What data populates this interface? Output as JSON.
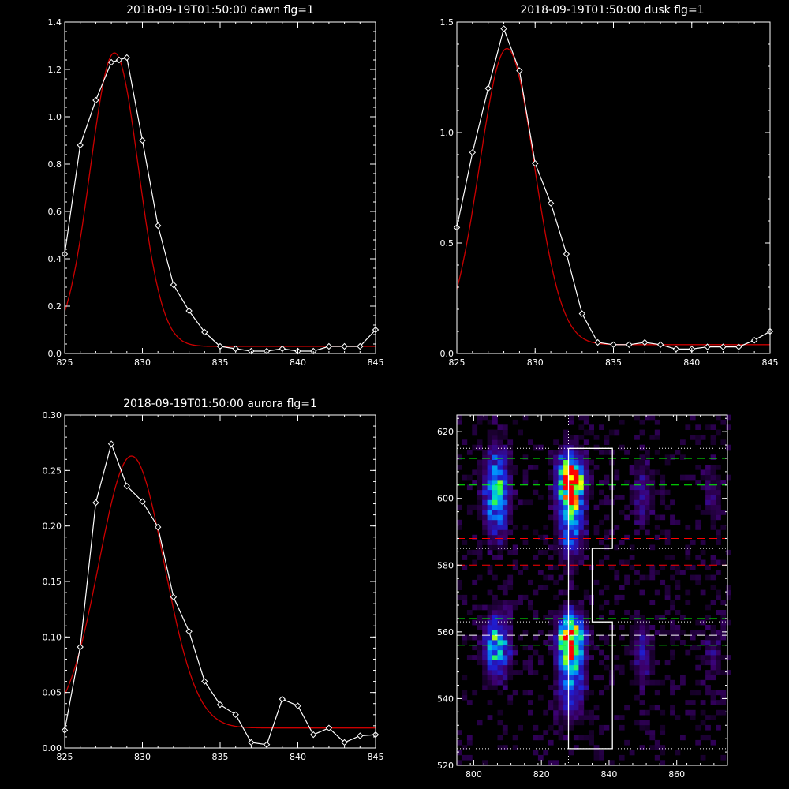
{
  "colors": {
    "background": "#000000",
    "axis": "#ffffff",
    "data": "#ffffff",
    "fit": "#cc0000",
    "green": "#00ff00",
    "redDash": "#ff0000"
  },
  "chart_data": [
    {
      "type": "line",
      "title": "2018-09-19T01:50:00 dawn flg=1",
      "xlim": [
        825,
        845
      ],
      "ylim": [
        0,
        1.4
      ],
      "xticks": [
        825,
        830,
        835,
        840,
        845
      ],
      "yticks": [
        0.0,
        0.2,
        0.4,
        0.6,
        0.8,
        1.0,
        1.2,
        1.4
      ],
      "yfmt": 1,
      "series": [
        {
          "role": "data",
          "marker": "diamond",
          "x": [
            825,
            826,
            827,
            828,
            828.5,
            829,
            830,
            831,
            832,
            833,
            834,
            835,
            836,
            837,
            838,
            839,
            840,
            841,
            842,
            843,
            844,
            845
          ],
          "y": [
            0.42,
            0.88,
            1.07,
            1.23,
            1.24,
            1.25,
            0.9,
            0.54,
            0.29,
            0.18,
            0.09,
            0.03,
            0.02,
            0.01,
            0.01,
            0.02,
            0.01,
            0.01,
            0.03,
            0.03,
            0.03,
            0.1
          ]
        },
        {
          "role": "fit",
          "kind": "gauss",
          "a": 1.24,
          "mu": 828.2,
          "sigma": 1.55,
          "c": 0.03
        }
      ]
    },
    {
      "type": "line",
      "title": "2018-09-19T01:50:00 dusk flg=1",
      "xlim": [
        825,
        845
      ],
      "ylim": [
        0,
        1.5
      ],
      "xticks": [
        825,
        830,
        835,
        840,
        845
      ],
      "yticks": [
        0.0,
        0.5,
        1.0,
        1.5
      ],
      "yfmt": 1,
      "series": [
        {
          "role": "data",
          "marker": "diamond",
          "x": [
            825,
            826,
            827,
            828,
            829,
            830,
            831,
            832,
            833,
            834,
            835,
            836,
            837,
            838,
            839,
            840,
            841,
            842,
            843,
            844,
            845
          ],
          "y": [
            0.57,
            0.91,
            1.2,
            1.47,
            1.28,
            0.86,
            0.68,
            0.45,
            0.18,
            0.05,
            0.04,
            0.04,
            0.05,
            0.04,
            0.02,
            0.02,
            0.03,
            0.03,
            0.03,
            0.06,
            0.1
          ]
        },
        {
          "role": "fit",
          "kind": "gauss",
          "a": 1.34,
          "mu": 828.2,
          "sigma": 1.75,
          "c": 0.04
        }
      ]
    },
    {
      "type": "line",
      "title": "2018-09-19T01:50:00 aurora flg=1",
      "xlim": [
        825,
        845
      ],
      "ylim": [
        0,
        0.3
      ],
      "xticks": [
        825,
        830,
        835,
        840,
        845
      ],
      "yticks": [
        0.0,
        0.05,
        0.1,
        0.15,
        0.2,
        0.25,
        0.3
      ],
      "yfmt": 2,
      "series": [
        {
          "role": "data",
          "marker": "diamond",
          "x": [
            825,
            826,
            827,
            828,
            829,
            830,
            831,
            832,
            833,
            834,
            835,
            836,
            837,
            838,
            839,
            840,
            841,
            842,
            843,
            844,
            845
          ],
          "y": [
            0.016,
            0.091,
            0.221,
            0.274,
            0.236,
            0.222,
            0.199,
            0.136,
            0.105,
            0.06,
            0.039,
            0.03,
            0.005,
            0.003,
            0.044,
            0.038,
            0.012,
            0.018,
            0.005,
            0.011,
            0.012
          ]
        },
        {
          "role": "fit",
          "kind": "gauss",
          "a": 0.245,
          "mu": 829.3,
          "sigma": 2.1,
          "c": 0.018
        }
      ]
    },
    {
      "type": "heatmap",
      "xlim": [
        795,
        875
      ],
      "ylim": [
        520,
        625
      ],
      "xticks": [
        800,
        820,
        840,
        860
      ],
      "yticks": [
        520,
        540,
        560,
        580,
        600,
        620
      ],
      "yfmt": 0,
      "blobs": [
        {
          "x": 806,
          "y": 601,
          "sx": 2.5,
          "sy": 8,
          "amp": 0.65
        },
        {
          "x": 828,
          "y": 605,
          "sx": 2.5,
          "sy": 5,
          "amp": 1.0
        },
        {
          "x": 828,
          "y": 594,
          "sx": 2.5,
          "sy": 8,
          "amp": 0.55
        },
        {
          "x": 806,
          "y": 555,
          "sx": 2.5,
          "sy": 6,
          "amp": 0.65
        },
        {
          "x": 828,
          "y": 557,
          "sx": 2.5,
          "sy": 5,
          "amp": 1.0
        },
        {
          "x": 828,
          "y": 545,
          "sx": 2.5,
          "sy": 7,
          "amp": 0.5
        },
        {
          "x": 849,
          "y": 600,
          "sx": 2,
          "sy": 6,
          "amp": 0.22
        },
        {
          "x": 849,
          "y": 553,
          "sx": 2,
          "sy": 6,
          "amp": 0.22
        },
        {
          "x": 870,
          "y": 600,
          "sx": 2,
          "sy": 6,
          "amp": 0.12
        },
        {
          "x": 870,
          "y": 553,
          "sx": 2,
          "sy": 6,
          "amp": 0.12
        }
      ],
      "dotted_v": [
        828
      ],
      "dotted_h": [
        525,
        563,
        585,
        615
      ],
      "dashed_green_h": [
        612,
        604,
        564,
        556
      ],
      "dashed_red_h": [
        588,
        580,
        588
      ],
      "dashed_white_h": [
        559
      ],
      "box_outline": [
        [
          828,
          615
        ],
        [
          841,
          615
        ],
        [
          841,
          585
        ],
        [
          835,
          585
        ],
        [
          835,
          563
        ],
        [
          841,
          563
        ],
        [
          841,
          525
        ],
        [
          828,
          525
        ],
        [
          828,
          615
        ]
      ]
    }
  ]
}
